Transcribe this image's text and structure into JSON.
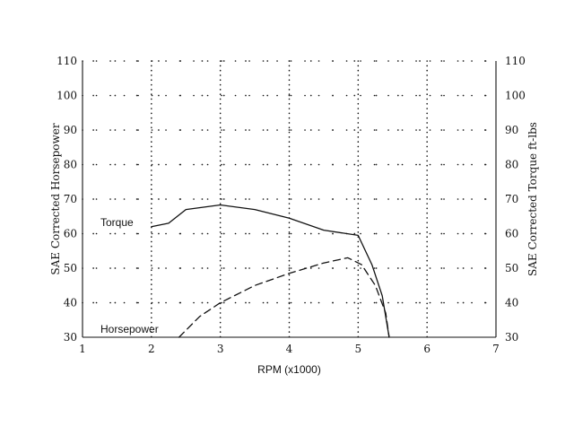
{
  "chart_data": {
    "type": "line",
    "xlabel": "RPM (x1000)",
    "ylabel_left": "SAE Corrected Horsepower",
    "ylabel_right": "SAE Corrected Torque ft-lbs",
    "xlim": [
      1,
      7
    ],
    "ylim": [
      30,
      110
    ],
    "x_ticks": [
      "1",
      "2",
      "3",
      "4",
      "5",
      "6",
      "7"
    ],
    "y_ticks": [
      "30",
      "40",
      "50",
      "60",
      "70",
      "80",
      "90",
      "100",
      "110"
    ],
    "grid": "dotted",
    "series": [
      {
        "name": "Torque",
        "style": "solid",
        "color": "#111111",
        "points": [
          [
            2.0,
            62
          ],
          [
            2.25,
            63
          ],
          [
            2.5,
            67
          ],
          [
            3.0,
            68.3
          ],
          [
            3.5,
            67
          ],
          [
            4.0,
            64.5
          ],
          [
            4.5,
            61
          ],
          [
            5.0,
            59.5
          ],
          [
            5.2,
            51
          ],
          [
            5.35,
            42
          ],
          [
            5.45,
            30
          ]
        ]
      },
      {
        "name": "Horsepower",
        "style": "dashed",
        "color": "#111111",
        "points": [
          [
            2.4,
            30
          ],
          [
            2.7,
            36
          ],
          [
            3.0,
            40
          ],
          [
            3.5,
            45
          ],
          [
            4.0,
            48.5
          ],
          [
            4.5,
            51.5
          ],
          [
            4.85,
            53
          ],
          [
            5.05,
            51
          ],
          [
            5.25,
            45
          ],
          [
            5.4,
            37
          ],
          [
            5.45,
            30
          ]
        ]
      }
    ]
  }
}
